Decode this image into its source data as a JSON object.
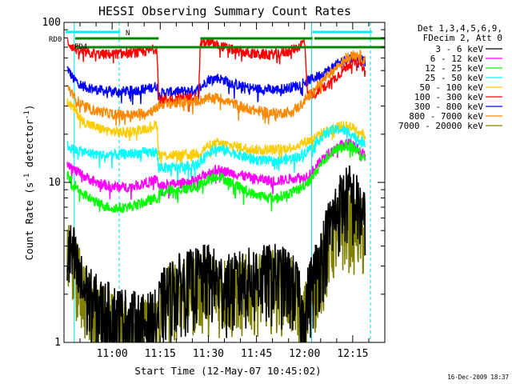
{
  "chart_data": {
    "type": "line",
    "title": "HESSI Observing Summary Count Rates",
    "xlabel": "Start Time (12-May-07 10:45:02)",
    "ylabel_main": "Count Rate (s",
    "ylabel_sup1": "-1",
    "ylabel_mid": " detector",
    "ylabel_sup2": "-1",
    "ylabel_end": ")",
    "yscale": "log",
    "ylim": [
      1,
      100
    ],
    "xlim_minutes_after_start": [
      0,
      100
    ],
    "y_ticks": [
      {
        "label": "1",
        "value": 1
      },
      {
        "label": "10",
        "value": 10
      },
      {
        "label": "100",
        "value": 100
      }
    ],
    "x_ticks": [
      {
        "label": "11:00",
        "value": 15
      },
      {
        "label": "11:15",
        "value": 30
      },
      {
        "label": "11:30",
        "value": 45
      },
      {
        "label": "11:45",
        "value": 60
      },
      {
        "label": "12:00",
        "value": 75
      },
      {
        "label": "12:15",
        "value": 90
      }
    ],
    "legend_header_1": "Det 1,3,4,5,6,9,",
    "legend_header_2": "FDecim 2, Att 0",
    "legend_position": "right",
    "flags": {
      "rd0_label": "RD0",
      "fd4_label": "FD4",
      "n_label": "N"
    },
    "footer_date": "16-Dec-2009 18:37",
    "series": [
      {
        "name": "3 - 6 keV",
        "color": "#000000",
        "kind": "low",
        "points": [
          [
            1,
            3.8
          ],
          [
            3,
            3.5
          ],
          [
            5,
            2.4
          ],
          [
            8,
            1.9
          ],
          [
            12,
            1.6
          ],
          [
            16,
            1.5
          ],
          [
            20,
            1.4
          ],
          [
            25,
            1.3
          ],
          [
            29,
            1.4
          ],
          [
            29.5,
            1.6
          ],
          [
            31,
            1.9
          ],
          [
            35,
            2.3
          ],
          [
            40,
            2.5
          ],
          [
            45,
            2.7
          ],
          [
            48,
            2.4
          ],
          [
            52,
            2.3
          ],
          [
            56,
            2.5
          ],
          [
            60,
            2.6
          ],
          [
            66,
            2.7
          ],
          [
            70,
            2.5
          ],
          [
            73,
            2.1
          ],
          [
            74,
            1.4
          ],
          [
            77,
            2.3
          ],
          [
            80,
            3.5
          ],
          [
            83,
            5.5
          ],
          [
            86,
            7.5
          ],
          [
            89,
            8.5
          ],
          [
            92,
            7.0
          ],
          [
            94,
            5.5
          ]
        ]
      },
      {
        "name": "6 - 12 keV",
        "color": "#ff00ff",
        "kind": "band",
        "points": [
          [
            1,
            13.5
          ],
          [
            3,
            12.0
          ],
          [
            6,
            11.0
          ],
          [
            10,
            10.0
          ],
          [
            14,
            9.5
          ],
          [
            18,
            9.3
          ],
          [
            22,
            9.5
          ],
          [
            26,
            10.0
          ],
          [
            29,
            10.5
          ],
          [
            29.5,
            9.5
          ],
          [
            32,
            9.6
          ],
          [
            36,
            9.8
          ],
          [
            40,
            10.2
          ],
          [
            42,
            10.5
          ],
          [
            45,
            11.5
          ],
          [
            48,
            12.0
          ],
          [
            52,
            11.5
          ],
          [
            56,
            11.0
          ],
          [
            60,
            10.5
          ],
          [
            66,
            10.2
          ],
          [
            70,
            10.5
          ],
          [
            73,
            10.8
          ],
          [
            74,
            10.5
          ],
          [
            77,
            11.5
          ],
          [
            80,
            13.5
          ],
          [
            83,
            15.5
          ],
          [
            86,
            17.0
          ],
          [
            89,
            17.5
          ],
          [
            92,
            16.0
          ],
          [
            94,
            14.5
          ]
        ]
      },
      {
        "name": "12 - 25 keV",
        "color": "#00ff00",
        "kind": "band",
        "points": [
          [
            1,
            11.0
          ],
          [
            3,
            9.8
          ],
          [
            6,
            8.5
          ],
          [
            10,
            7.5
          ],
          [
            14,
            7.0
          ],
          [
            18,
            6.9
          ],
          [
            22,
            7.2
          ],
          [
            26,
            7.6
          ],
          [
            29,
            8.0
          ],
          [
            29.5,
            8.5
          ],
          [
            32,
            8.8
          ],
          [
            36,
            9.0
          ],
          [
            40,
            9.3
          ],
          [
            42,
            9.5
          ],
          [
            45,
            10.5
          ],
          [
            48,
            11.0
          ],
          [
            52,
            10.0
          ],
          [
            56,
            9.0
          ],
          [
            60,
            8.3
          ],
          [
            66,
            8.0
          ],
          [
            70,
            8.5
          ],
          [
            73,
            9.0
          ],
          [
            74,
            9.3
          ],
          [
            77,
            10.5
          ],
          [
            80,
            13.0
          ],
          [
            83,
            15.0
          ],
          [
            86,
            16.5
          ],
          [
            89,
            17.0
          ],
          [
            92,
            15.5
          ],
          [
            94,
            14.0
          ]
        ]
      },
      {
        "name": "25 - 50 keV",
        "color": "#00ffff",
        "kind": "band",
        "points": [
          [
            1,
            17.0
          ],
          [
            3,
            16.0
          ],
          [
            6,
            15.5
          ],
          [
            10,
            15.0
          ],
          [
            14,
            14.8
          ],
          [
            18,
            15.0
          ],
          [
            22,
            15.2
          ],
          [
            26,
            15.4
          ],
          [
            29,
            15.5
          ],
          [
            29.5,
            12.5
          ],
          [
            32,
            12.3
          ],
          [
            36,
            12.5
          ],
          [
            40,
            12.7
          ],
          [
            42,
            13.0
          ],
          [
            45,
            15.5
          ],
          [
            48,
            16.2
          ],
          [
            52,
            15.5
          ],
          [
            56,
            14.5
          ],
          [
            60,
            13.8
          ],
          [
            66,
            13.5
          ],
          [
            70,
            14.0
          ],
          [
            73,
            14.5
          ],
          [
            74,
            14.8
          ],
          [
            77,
            16.5
          ],
          [
            80,
            19.0
          ],
          [
            83,
            21.0
          ],
          [
            86,
            21.5
          ],
          [
            89,
            20.5
          ],
          [
            92,
            18.5
          ],
          [
            94,
            17.5
          ]
        ]
      },
      {
        "name": "50 - 100 keV",
        "color": "#ffcc00",
        "kind": "band",
        "points": [
          [
            1,
            32.0
          ],
          [
            3,
            29.0
          ],
          [
            6,
            24.0
          ],
          [
            10,
            22.0
          ],
          [
            14,
            21.0
          ],
          [
            18,
            20.5
          ],
          [
            22,
            21.0
          ],
          [
            26,
            22.0
          ],
          [
            29,
            23.0
          ],
          [
            29.5,
            15.0
          ],
          [
            32,
            14.8
          ],
          [
            36,
            14.8
          ],
          [
            40,
            15.0
          ],
          [
            42,
            15.2
          ],
          [
            45,
            17.0
          ],
          [
            48,
            17.5
          ],
          [
            52,
            17.0
          ],
          [
            56,
            16.5
          ],
          [
            60,
            16.0
          ],
          [
            66,
            16.0
          ],
          [
            70,
            16.5
          ],
          [
            73,
            17.0
          ],
          [
            74,
            17.5
          ],
          [
            77,
            18.5
          ],
          [
            80,
            20.0
          ],
          [
            83,
            21.5
          ],
          [
            86,
            22.5
          ],
          [
            89,
            22.5
          ],
          [
            92,
            21.0
          ],
          [
            94,
            19.5
          ]
        ]
      },
      {
        "name": "100 - 300 keV",
        "color": "#ff0000",
        "kind": "band",
        "points": [
          [
            1,
            76.0
          ],
          [
            3,
            69.0
          ],
          [
            5,
            66.0
          ],
          [
            8,
            64.0
          ],
          [
            12,
            63.0
          ],
          [
            16,
            63.5
          ],
          [
            20,
            64.0
          ],
          [
            24,
            65.0
          ],
          [
            27,
            67.0
          ],
          [
            29,
            69.0
          ],
          [
            29.5,
            33.0
          ],
          [
            32,
            33.0
          ],
          [
            36,
            33.5
          ],
          [
            40,
            34.0
          ],
          [
            42,
            35.0
          ],
          [
            42.5,
            75.0
          ],
          [
            46,
            74.0
          ],
          [
            50,
            70.0
          ],
          [
            54,
            66.0
          ],
          [
            58,
            64.0
          ],
          [
            62,
            63.0
          ],
          [
            66,
            63.5
          ],
          [
            70,
            66.0
          ],
          [
            73,
            70.0
          ],
          [
            75,
            77.0
          ],
          [
            76,
            35.0
          ],
          [
            78,
            36.0
          ],
          [
            80,
            38.0
          ],
          [
            83,
            42.0
          ],
          [
            86,
            48.0
          ],
          [
            89,
            55.0
          ],
          [
            92,
            58.0
          ],
          [
            94,
            48.0
          ]
        ]
      },
      {
        "name": "300 - 800 keV",
        "color": "#0000ff",
        "kind": "band",
        "points": [
          [
            1,
            52.0
          ],
          [
            3,
            44.0
          ],
          [
            6,
            40.0
          ],
          [
            10,
            38.0
          ],
          [
            14,
            37.0
          ],
          [
            18,
            37.0
          ],
          [
            22,
            37.5
          ],
          [
            26,
            38.5
          ],
          [
            29,
            40.0
          ],
          [
            29.5,
            36.0
          ],
          [
            32,
            36.5
          ],
          [
            36,
            37.0
          ],
          [
            40,
            37.5
          ],
          [
            42,
            38.0
          ],
          [
            45,
            44.0
          ],
          [
            48,
            45.0
          ],
          [
            52,
            42.0
          ],
          [
            56,
            39.5
          ],
          [
            60,
            38.5
          ],
          [
            66,
            38.0
          ],
          [
            70,
            39.0
          ],
          [
            73,
            40.5
          ],
          [
            74,
            42.0
          ],
          [
            77,
            44.0
          ],
          [
            80,
            47.0
          ],
          [
            83,
            51.0
          ],
          [
            86,
            56.0
          ],
          [
            89,
            60.0
          ],
          [
            92,
            60.0
          ],
          [
            94,
            56.0
          ]
        ]
      },
      {
        "name": "800 - 7000 keV",
        "color": "#ff8800",
        "kind": "band",
        "points": [
          [
            1,
            40.0
          ],
          [
            3,
            34.0
          ],
          [
            6,
            30.0
          ],
          [
            10,
            28.0
          ],
          [
            14,
            27.0
          ],
          [
            18,
            26.5
          ],
          [
            22,
            26.5
          ],
          [
            26,
            27.5
          ],
          [
            29,
            29.0
          ],
          [
            29.5,
            30.5
          ],
          [
            32,
            31.0
          ],
          [
            36,
            31.5
          ],
          [
            40,
            32.0
          ],
          [
            42,
            32.5
          ],
          [
            45,
            33.5
          ],
          [
            48,
            34.0
          ],
          [
            52,
            31.5
          ],
          [
            56,
            29.5
          ],
          [
            60,
            28.0
          ],
          [
            66,
            27.0
          ],
          [
            70,
            27.5
          ],
          [
            73,
            29.5
          ],
          [
            74,
            31.0
          ],
          [
            77,
            36.0
          ],
          [
            80,
            42.0
          ],
          [
            83,
            48.0
          ],
          [
            86,
            55.0
          ],
          [
            89,
            62.0
          ],
          [
            92,
            63.0
          ],
          [
            94,
            57.0
          ]
        ]
      },
      {
        "name": "7000 - 20000 keV",
        "color": "#808000",
        "kind": "low",
        "points": [
          [
            1,
            3.6
          ],
          [
            3,
            3.2
          ],
          [
            5,
            2.5
          ],
          [
            8,
            1.8
          ],
          [
            12,
            1.5
          ],
          [
            16,
            1.3
          ],
          [
            20,
            1.25
          ],
          [
            25,
            1.2
          ],
          [
            29,
            1.3
          ],
          [
            30,
            1.6
          ],
          [
            32,
            2.0
          ],
          [
            35,
            2.2
          ],
          [
            40,
            2.3
          ],
          [
            45,
            2.4
          ],
          [
            48,
            2.3
          ],
          [
            52,
            2.2
          ],
          [
            56,
            2.3
          ],
          [
            60,
            2.4
          ],
          [
            66,
            2.5
          ],
          [
            70,
            2.3
          ],
          [
            73,
            2.0
          ],
          [
            74,
            1.3
          ],
          [
            77,
            2.0
          ],
          [
            80,
            3.0
          ],
          [
            83,
            4.5
          ],
          [
            86,
            5.5
          ],
          [
            89,
            6.0
          ],
          [
            92,
            5.5
          ],
          [
            94,
            4.7
          ]
        ]
      }
    ]
  }
}
